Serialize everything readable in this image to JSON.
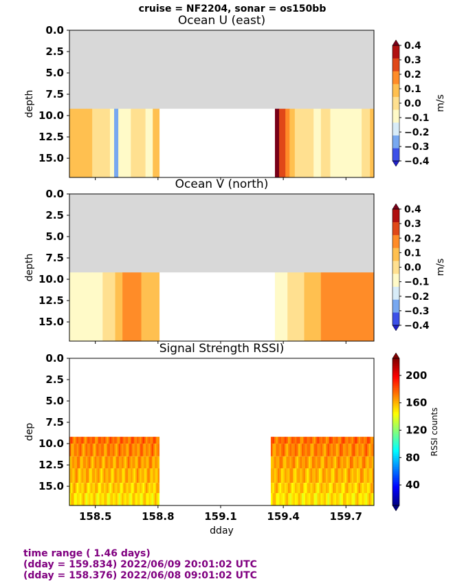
{
  "suptitle": "cruise = NF2204,  sonar = os150bb",
  "colors": {
    "nodata_gray": "#d8d8d8",
    "footer_purple": "#800080"
  },
  "footer": {
    "line1": "time range ( 1.46 days)",
    "line2": "(dday = 159.834) 2022/06/09 20:01:02 UTC",
    "line3": "(dday = 158.376) 2022/06/08 09:01:02 UTC"
  },
  "chart_data": [
    {
      "type": "heatmap",
      "title": "Ocean U (east)",
      "xlabel": "",
      "ylabel": "depth",
      "colorbar_label": "m/s",
      "x_range": [
        158.376,
        159.834
      ],
      "y_range": [
        17.25,
        0.0
      ],
      "y_ticks": [
        "0.0",
        "2.5",
        "5.0",
        "7.5",
        "10.0",
        "12.5",
        "15.0"
      ],
      "colorbar_ticks": [
        "0.4",
        "0.3",
        "0.2",
        "0.1",
        "0.0",
        "−0.1",
        "−0.2",
        "−0.3",
        "−0.4"
      ],
      "colorbar_colors": [
        "#2020c8",
        "#3c50e8",
        "#78a8f0",
        "#d8ecf8",
        "#fffac8",
        "#ffe090",
        "#ffc050",
        "#ff8c28",
        "#e04818",
        "#b01010",
        "#780018"
      ],
      "data_depth_range": [
        9.2,
        17.25
      ],
      "segments": [
        {
          "x_start": 158.376,
          "x_end": 158.806,
          "columns": [
            [
              158.376,
              0.15
            ],
            [
              158.44,
              0.15
            ],
            [
              158.47,
              0.15
            ],
            [
              158.5,
              0.05
            ],
            [
              158.53,
              0.05
            ],
            [
              158.56,
              0.0
            ],
            [
              158.58,
              -0.07
            ],
            [
              158.6,
              -0.3
            ],
            [
              158.62,
              -0.05
            ],
            [
              158.65,
              -0.05
            ],
            [
              158.69,
              0.05
            ],
            [
              158.72,
              0.05
            ],
            [
              158.76,
              -0.05
            ],
            [
              158.79,
              0.15
            ]
          ]
        },
        {
          "x_start": 159.36,
          "x_end": 159.834,
          "columns": [
            [
              159.36,
              0.45
            ],
            [
              159.4,
              0.35
            ],
            [
              159.42,
              0.25
            ],
            [
              159.44,
              0.1
            ],
            [
              159.47,
              0.05
            ],
            [
              159.5,
              0.05
            ],
            [
              159.53,
              0.05
            ],
            [
              159.56,
              -0.05
            ],
            [
              159.6,
              0.05
            ],
            [
              159.65,
              -0.05
            ],
            [
              159.7,
              -0.05
            ],
            [
              159.75,
              -0.05
            ],
            [
              159.8,
              0.05
            ],
            [
              159.83,
              0.15
            ]
          ]
        }
      ]
    },
    {
      "type": "heatmap",
      "title": "Ocean V (north)",
      "xlabel": "",
      "ylabel": "depth",
      "colorbar_label": "m/s",
      "x_range": [
        158.376,
        159.834
      ],
      "y_range": [
        17.25,
        0.0
      ],
      "y_ticks": [
        "0.0",
        "2.5",
        "5.0",
        "7.5",
        "10.0",
        "12.5",
        "15.0"
      ],
      "colorbar_ticks": [
        "0.4",
        "0.3",
        "0.2",
        "0.1",
        "0.0",
        "−0.1",
        "−0.2",
        "−0.3",
        "−0.4"
      ],
      "colorbar_colors": [
        "#2020c8",
        "#3c50e8",
        "#78a8f0",
        "#d8ecf8",
        "#fffac8",
        "#ffe090",
        "#ffc050",
        "#ff8c28",
        "#e04818",
        "#b01010",
        "#780018"
      ],
      "data_depth_range": [
        9.2,
        17.25
      ],
      "segments": [
        {
          "x_start": 158.376,
          "x_end": 158.806,
          "columns": [
            [
              158.376,
              -0.05
            ],
            [
              158.45,
              -0.05
            ],
            [
              158.52,
              -0.05
            ],
            [
              158.55,
              0.0
            ],
            [
              158.58,
              0.05
            ],
            [
              158.61,
              0.15
            ],
            [
              158.65,
              0.25
            ],
            [
              158.7,
              0.25
            ],
            [
              158.74,
              0.15
            ],
            [
              158.79,
              0.15
            ]
          ]
        },
        {
          "x_start": 159.36,
          "x_end": 159.834,
          "columns": [
            [
              159.36,
              -0.05
            ],
            [
              159.4,
              -0.05
            ],
            [
              159.44,
              0.0
            ],
            [
              159.48,
              0.05
            ],
            [
              159.52,
              0.1
            ],
            [
              159.56,
              0.15
            ],
            [
              159.6,
              0.25
            ],
            [
              159.65,
              0.25
            ],
            [
              159.7,
              0.3
            ],
            [
              159.75,
              0.25
            ],
            [
              159.8,
              0.25
            ],
            [
              159.83,
              0.25
            ]
          ]
        }
      ]
    },
    {
      "type": "heatmap",
      "title": "Signal Strength RSSI)",
      "xlabel": "dday",
      "ylabel": "dep",
      "colorbar_label": "RSSI counts",
      "x_range": [
        158.376,
        159.834
      ],
      "x_ticks": [
        "158.5",
        "158.8",
        "159.1",
        "159.4",
        "159.7"
      ],
      "y_range": [
        17.25,
        0.0
      ],
      "y_ticks": [
        "0.0",
        "2.5",
        "5.0",
        "7.5",
        "10.0",
        "12.5",
        "15.0"
      ],
      "colorbar_range": [
        10,
        225
      ],
      "colorbar_ticks": [
        "40",
        "80",
        "120",
        "160",
        "200"
      ],
      "data_depth_range": [
        9.2,
        17.25
      ],
      "depth_bins": [
        [
          9.2,
          10.0
        ],
        [
          10.0,
          11.5
        ],
        [
          11.5,
          12.9
        ],
        [
          12.9,
          14.6
        ],
        [
          14.6,
          15.8
        ],
        [
          15.8,
          17.25
        ]
      ],
      "row_rssi": [
        175,
        170,
        165,
        160,
        155,
        150
      ],
      "segments": [
        {
          "x_start": 158.376,
          "x_end": 158.806
        },
        {
          "x_start": 159.34,
          "x_end": 159.834
        }
      ]
    }
  ]
}
